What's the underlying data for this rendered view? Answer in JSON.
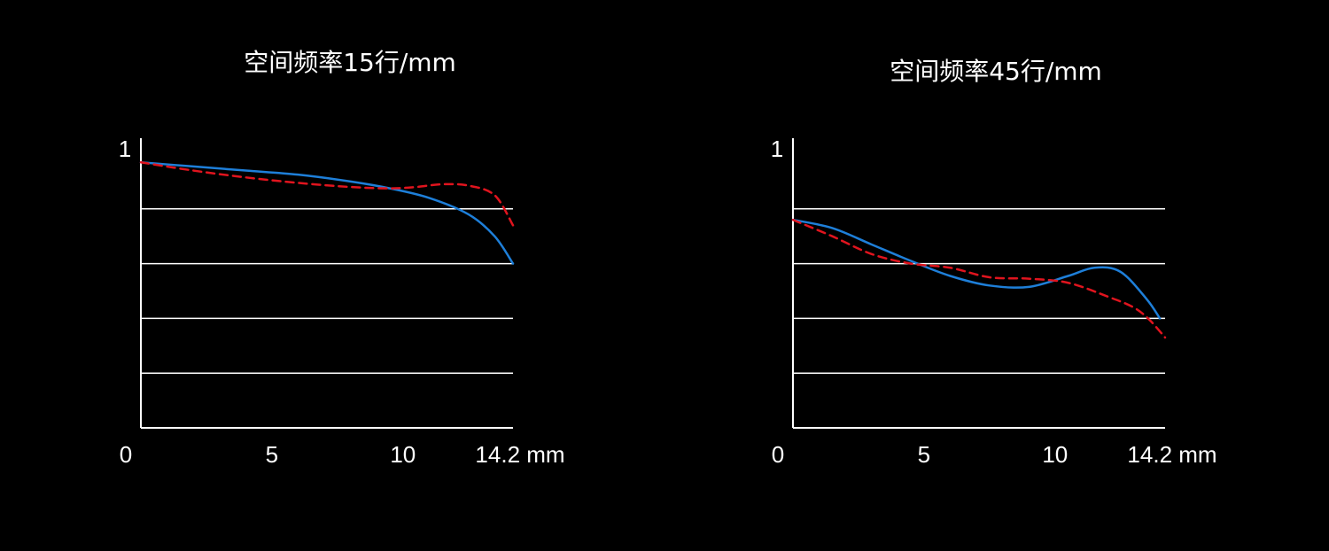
{
  "chart_data": [
    {
      "type": "line",
      "title": "空间频率15行/mm",
      "xlabel": "",
      "ylabel": "",
      "xlim": [
        0,
        14.2
      ],
      "ylim": [
        0,
        1
      ],
      "x_ticks": [
        "0",
        "5",
        "10",
        "14.2 mm"
      ],
      "x_tick_values": [
        0,
        5,
        10,
        14.2
      ],
      "y_tick_label": "1",
      "grid_y": [
        0.2,
        0.4,
        0.6,
        0.8
      ],
      "series": [
        {
          "style": "solid",
          "color": "#1e7fd9",
          "points": [
            [
              0,
              0.97
            ],
            [
              2,
              0.955
            ],
            [
              4,
              0.94
            ],
            [
              6,
              0.925
            ],
            [
              8,
              0.9
            ],
            [
              9.5,
              0.875
            ],
            [
              11,
              0.84
            ],
            [
              12.5,
              0.78
            ],
            [
              13.5,
              0.7
            ],
            [
              14.2,
              0.6
            ]
          ]
        },
        {
          "style": "dashed",
          "color": "#e0141e",
          "points": [
            [
              0,
              0.97
            ],
            [
              2,
              0.94
            ],
            [
              4,
              0.915
            ],
            [
              6,
              0.895
            ],
            [
              8,
              0.88
            ],
            [
              9.5,
              0.875
            ],
            [
              10.5,
              0.88
            ],
            [
              11.5,
              0.89
            ],
            [
              12.5,
              0.885
            ],
            [
              13.5,
              0.85
            ],
            [
              14.2,
              0.74
            ]
          ]
        }
      ]
    },
    {
      "type": "line",
      "title": "空间频率45行/mm",
      "xlabel": "",
      "ylabel": "",
      "xlim": [
        0,
        14.2
      ],
      "ylim": [
        0,
        1
      ],
      "x_ticks": [
        "0",
        "5",
        "10",
        "14.2 mm"
      ],
      "x_tick_values": [
        0,
        5,
        10,
        14.2
      ],
      "y_tick_label": "1",
      "grid_y": [
        0.2,
        0.4,
        0.6,
        0.8
      ],
      "series": [
        {
          "style": "solid",
          "color": "#1e7fd9",
          "points": [
            [
              0,
              0.76
            ],
            [
              1.5,
              0.73
            ],
            [
              3,
              0.67
            ],
            [
              4.5,
              0.61
            ],
            [
              6,
              0.555
            ],
            [
              7.5,
              0.52
            ],
            [
              9,
              0.515
            ],
            [
              10.5,
              0.555
            ],
            [
              11.5,
              0.585
            ],
            [
              12.5,
              0.57
            ],
            [
              13.5,
              0.47
            ],
            [
              14,
              0.4
            ]
          ]
        },
        {
          "style": "dashed",
          "color": "#e0141e",
          "points": [
            [
              0,
              0.76
            ],
            [
              1.5,
              0.7
            ],
            [
              3,
              0.635
            ],
            [
              4.5,
              0.6
            ],
            [
              6,
              0.585
            ],
            [
              7.5,
              0.55
            ],
            [
              9,
              0.545
            ],
            [
              10.5,
              0.53
            ],
            [
              12,
              0.48
            ],
            [
              13,
              0.44
            ],
            [
              13.6,
              0.395
            ],
            [
              14.2,
              0.33
            ]
          ]
        }
      ]
    }
  ]
}
